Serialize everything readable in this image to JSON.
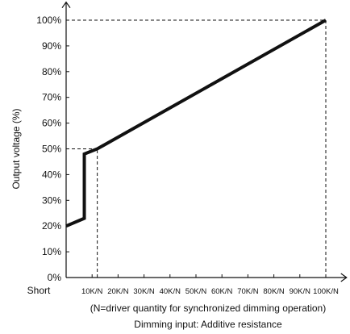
{
  "chart_data": {
    "type": "line",
    "ylabel": "Output voltage (%)",
    "xlabel": "Dimming input: Additive resistance",
    "annotation": "(N=driver quantity for synchronized dimming operation)",
    "x_origin_label": "Short",
    "x_ticks": [
      "10K/N",
      "20K/N",
      "30K/N",
      "40K/N",
      "50K/N",
      "60K/N",
      "70K/N",
      "80K/N",
      "90K/N",
      "100K/N"
    ],
    "x_tick_values": [
      10,
      20,
      30,
      40,
      50,
      60,
      70,
      80,
      90,
      100
    ],
    "y_ticks": [
      "0%",
      "10%",
      "20%",
      "30%",
      "40%",
      "50%",
      "60%",
      "70%",
      "80%",
      "90%",
      "100%"
    ],
    "y_tick_values": [
      0,
      10,
      20,
      30,
      40,
      50,
      60,
      70,
      80,
      90,
      100
    ],
    "xlim": [
      0,
      108
    ],
    "ylim": [
      0,
      107
    ],
    "series": [
      {
        "x": [
          0,
          7,
          7,
          12,
          100
        ],
        "y": [
          20,
          23,
          48,
          50,
          100
        ]
      }
    ],
    "reference_lines": [
      {
        "x": [
          12,
          12
        ],
        "y": [
          0,
          50
        ]
      },
      {
        "x": [
          0,
          12
        ],
        "y": [
          50,
          50
        ]
      },
      {
        "x": [
          0,
          100
        ],
        "y": [
          100,
          100
        ]
      },
      {
        "x": [
          100,
          100
        ],
        "y": [
          0,
          100
        ]
      }
    ]
  }
}
